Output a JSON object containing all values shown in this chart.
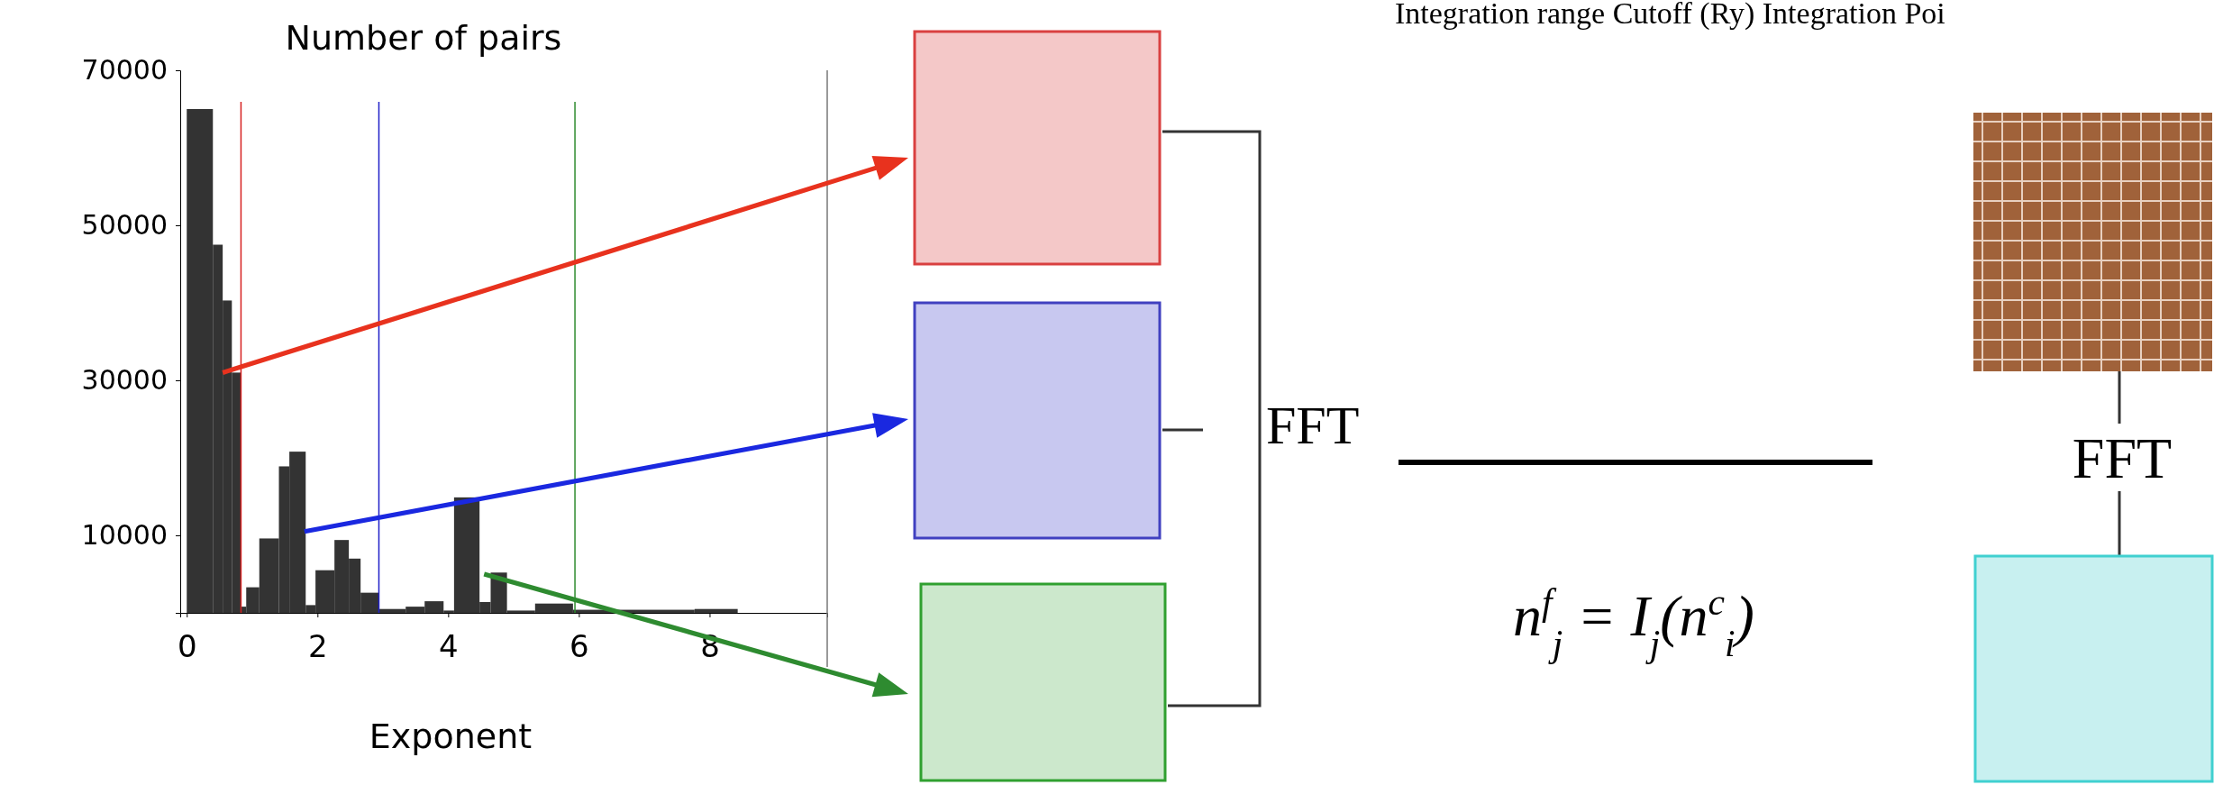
{
  "chart_data": {
    "type": "histogram",
    "ylabel": "Number of pairs",
    "xlabel": "Exponent",
    "color": "#333333",
    "bins": [
      0,
      0.4,
      0.55,
      0.69,
      0.83,
      0.91,
      1.11,
      1.41,
      1.57,
      1.82,
      1.97,
      2.26,
      2.48,
      2.66,
      2.94,
      3.35,
      3.64,
      3.93,
      4.09,
      4.48,
      4.65,
      4.9,
      5.33,
      5.91,
      7.77,
      8.43
    ],
    "values": [
      65000,
      47500,
      40300,
      31000,
      800,
      3300,
      9600,
      18900,
      20800,
      1000,
      5500,
      9400,
      7000,
      2600,
      500,
      800,
      1500,
      300,
      14900,
      1400,
      5200,
      300,
      1200,
      400,
      500
    ],
    "xlim": [
      -0.1,
      9.8
    ],
    "xticks": [
      0,
      2,
      4,
      6,
      8
    ],
    "ylim": [
      0,
      70000
    ],
    "yticks": [
      10000,
      30000,
      50000,
      70000
    ],
    "ref_lines": [
      {
        "axis": "x",
        "value": 0.83,
        "color": "#d62020"
      },
      {
        "axis": "x",
        "value": 2.94,
        "color": "#2020c8"
      },
      {
        "axis": "x",
        "value": 5.94,
        "color": "#2e8b2e"
      }
    ],
    "annotations": [
      "FFT",
      "FFT",
      "Integration range  Cutoff (Ry)  Integration Poi",
      "n$^{f}$$_{j}$ = I$_{j}$(n$^{c}$$_{i}$)"
    ]
  }
}
